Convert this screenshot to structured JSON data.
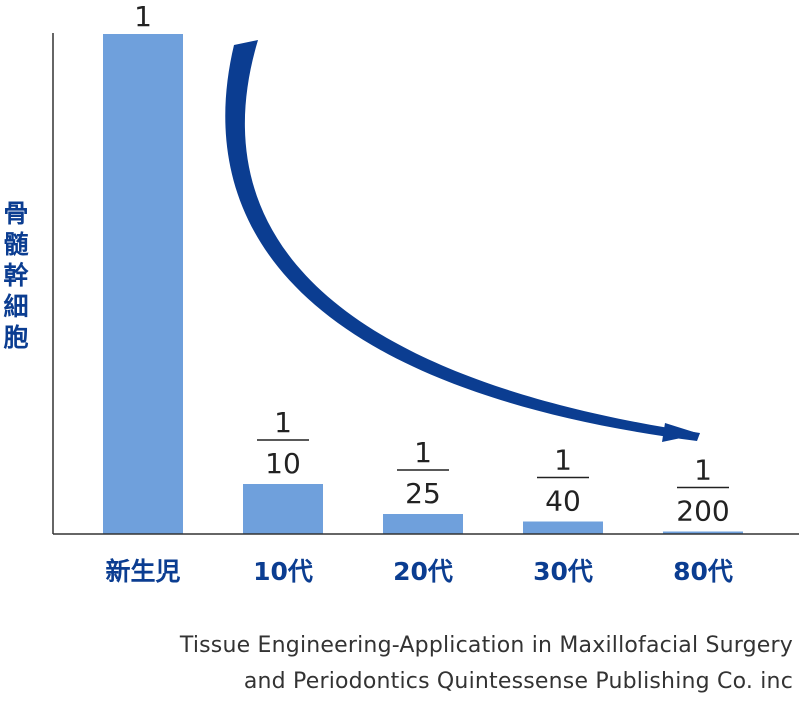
{
  "chart_data": {
    "type": "bar",
    "ylabel": "骨髄幹細胞",
    "categories": [
      "新生児",
      "10代",
      "20代",
      "30代",
      "80代"
    ],
    "values": [
      1,
      0.1,
      0.04,
      0.025,
      0.005
    ],
    "data_labels": [
      {
        "numerator": "1",
        "denominator": ""
      },
      {
        "numerator": "1",
        "denominator": "10"
      },
      {
        "numerator": "1",
        "denominator": "25"
      },
      {
        "numerator": "1",
        "denominator": "40"
      },
      {
        "numerator": "1",
        "denominator": "200"
      }
    ],
    "grid": false,
    "colors": {
      "bar": "#6fa0dc",
      "arrow": "#0b3d91",
      "category_text": "#0b3d91",
      "axis": "#333333"
    }
  },
  "source": {
    "line1": "Tissue Engineering-Application in Maxillofacial Surgery",
    "line2": "and Periodontics Quintessense Publishing Co. inc"
  }
}
